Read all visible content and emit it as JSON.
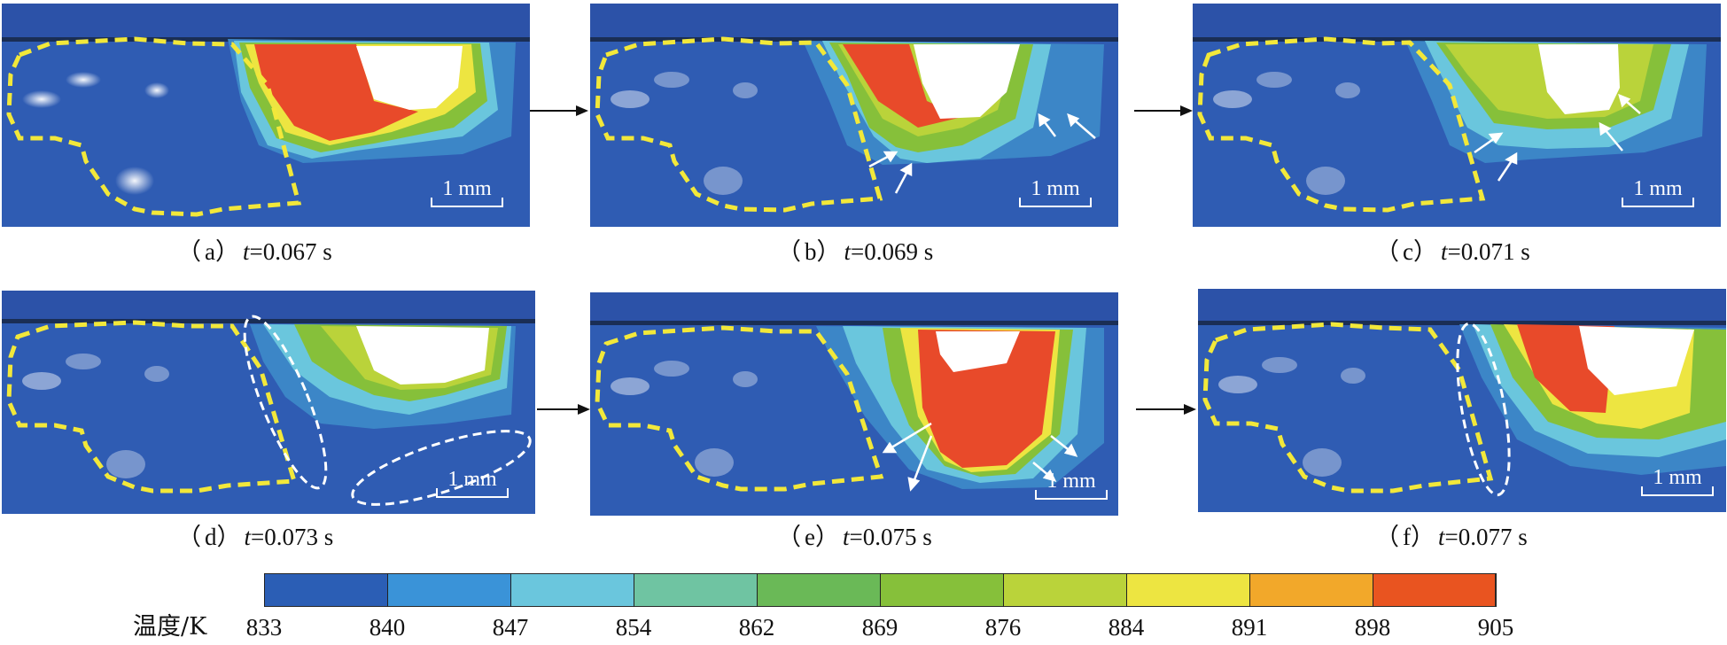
{
  "panels": [
    {
      "id": "a",
      "letter": "a",
      "time": "0.067"
    },
    {
      "id": "b",
      "letter": "b",
      "time": "0.069"
    },
    {
      "id": "c",
      "letter": "c",
      "time": "0.071"
    },
    {
      "id": "d",
      "letter": "d",
      "time": "0.073"
    },
    {
      "id": "e",
      "letter": "e",
      "time": "0.075"
    },
    {
      "id": "f",
      "letter": "f",
      "time": "0.077"
    }
  ],
  "scale_bar": "1 mm",
  "caption_prefix_symbol": "t",
  "caption_unit": "s",
  "colorbar": {
    "title": "温度/K",
    "ticks": [
      "833",
      "840",
      "847",
      "854",
      "862",
      "869",
      "876",
      "884",
      "891",
      "898",
      "905"
    ],
    "colors": [
      "#2b5eb5",
      "#3a93d8",
      "#6ac6dd",
      "#6fc4a2",
      "#6ab957",
      "#86c03a",
      "#bad33a",
      "#ede541",
      "#f2a82a",
      "#e95420"
    ]
  },
  "colors": {
    "background_blue": "#2f5cb3",
    "top_band": "#2c52a8",
    "dashed_yellow": "#f2e83a",
    "dashed_white": "#ffffff"
  }
}
